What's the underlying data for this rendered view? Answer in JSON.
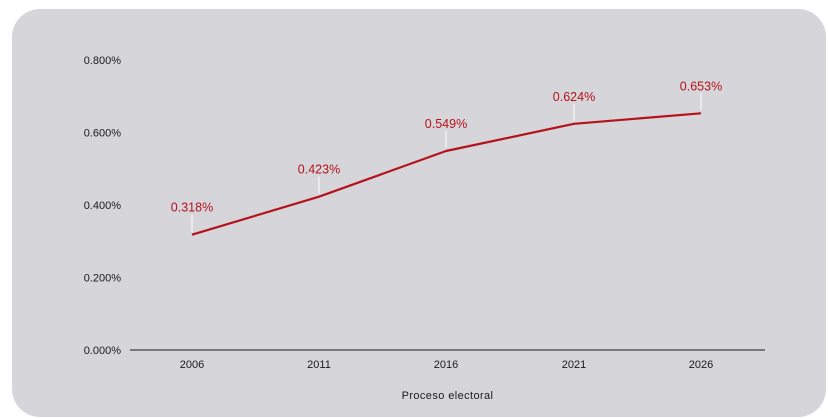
{
  "chart_data": {
    "type": "line",
    "title": "",
    "xlabel": "Proceso electoral",
    "ylabel": "",
    "categories": [
      "2006",
      "2011",
      "2016",
      "2021",
      "2026"
    ],
    "series": [
      {
        "values": [
          0.318,
          0.423,
          0.549,
          0.624,
          0.653
        ],
        "labels": [
          "0.318%",
          "0.423%",
          "0.549%",
          "0.624%",
          "0.653%"
        ],
        "color": "#b5121b"
      }
    ],
    "yticks": [
      0.0,
      0.2,
      0.4,
      0.6,
      0.8
    ],
    "ytick_labels": [
      "0.000%",
      "0.200%",
      "0.400%",
      "0.600%",
      "0.800%"
    ],
    "ylim": [
      0,
      0.8
    ],
    "grid": false,
    "legend": "none"
  },
  "colors": {
    "background": "#d6d5da",
    "line": "#b5121b",
    "label": "#b5121b",
    "axis": "#1a1a1a",
    "leader": "#ffffff"
  }
}
